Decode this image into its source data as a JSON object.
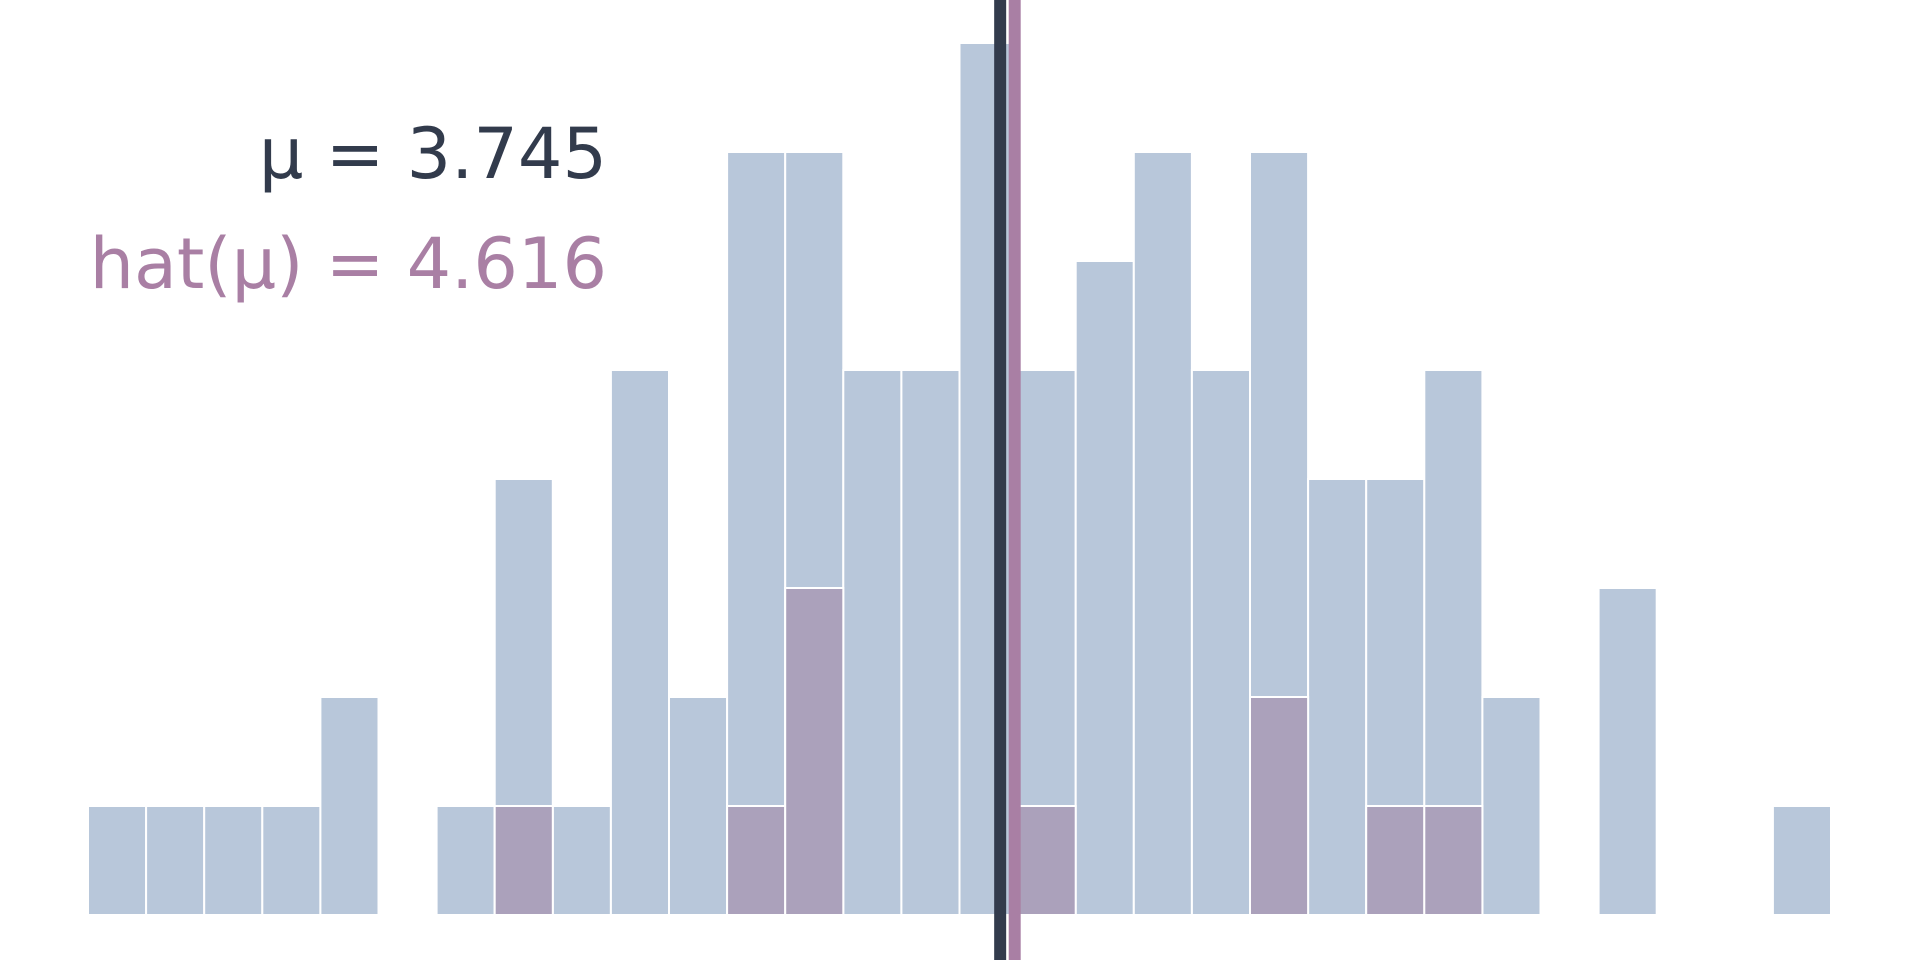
{
  "chart_data": {
    "type": "bar",
    "title": "",
    "xlabel": "",
    "ylabel": "",
    "ylim": [
      0,
      8.3
    ],
    "bin_count": 30,
    "population": {
      "counts": [
        1,
        1,
        1,
        1,
        2,
        0,
        1,
        4,
        1,
        5,
        2,
        7,
        7,
        5,
        5,
        8,
        5,
        6,
        7,
        5,
        7,
        4,
        4,
        5,
        2,
        0,
        3,
        0,
        0,
        1
      ],
      "color": "#b8c7da"
    },
    "sample": {
      "counts": [
        0,
        0,
        0,
        0,
        0,
        0,
        0,
        1,
        0,
        0,
        0,
        1,
        3,
        0,
        0,
        0,
        1,
        0,
        0,
        0,
        2,
        0,
        1,
        1,
        0,
        0,
        0,
        0,
        0,
        0
      ],
      "color": "#aba1bb"
    },
    "mean_line": {
      "label": "μ = 3.745",
      "bin_position": 15.7,
      "color": "#323b4c"
    },
    "estimate_line": {
      "label": "hat(μ) = 4.616",
      "bin_position": 15.95,
      "color": "#a97fa4"
    }
  }
}
